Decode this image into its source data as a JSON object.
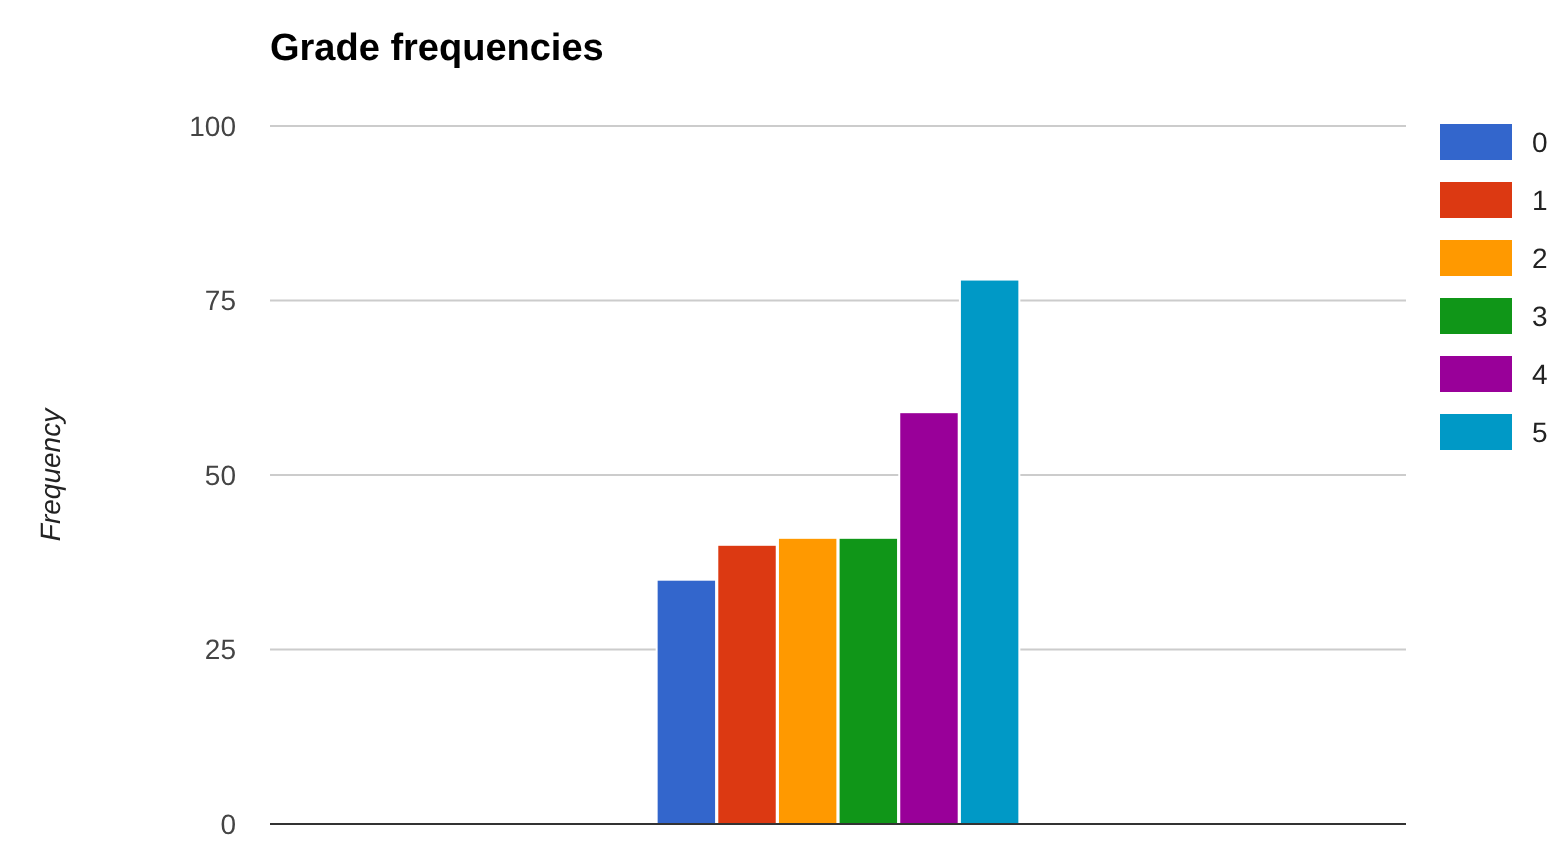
{
  "chart_data": {
    "type": "bar",
    "title": "Grade frequencies",
    "ylabel": "Frequency",
    "categories": [
      null
    ],
    "series": [
      {
        "name": "0",
        "color": "#3366cc",
        "values": [
          35
        ]
      },
      {
        "name": "1",
        "color": "#dc3912",
        "values": [
          40
        ]
      },
      {
        "name": "2",
        "color": "#ff9900",
        "values": [
          41
        ]
      },
      {
        "name": "3",
        "color": "#109618",
        "values": [
          41
        ]
      },
      {
        "name": "4",
        "color": "#990099",
        "values": [
          59
        ]
      },
      {
        "name": "5",
        "color": "#0099c6",
        "values": [
          78
        ]
      }
    ],
    "ylim": [
      0,
      100
    ],
    "yticks": [
      0,
      25,
      50,
      75,
      100
    ],
    "grid": "y",
    "legend": "top right"
  }
}
